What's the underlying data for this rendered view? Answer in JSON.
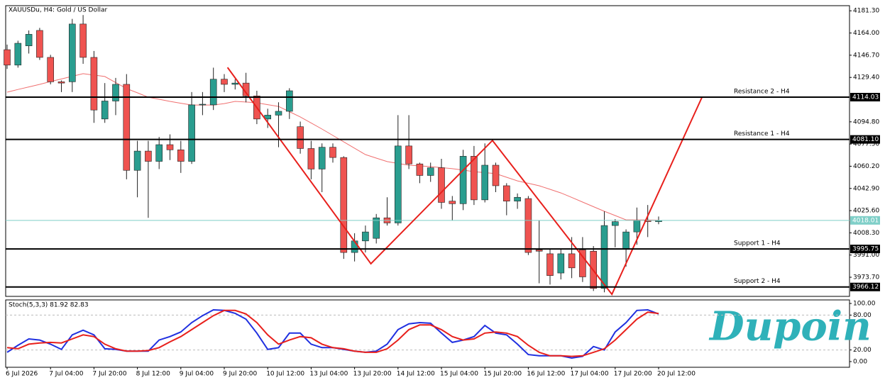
{
  "chart_data": {
    "type": "candlestick",
    "title": "XAUUSDu, H4:  Gold / US Dollar",
    "watermark": "Dupoin",
    "categories": [
      "6 Jul 2026",
      null,
      null,
      null,
      "7 Jul 04:00",
      null,
      null,
      null,
      "7 Jul 20:00",
      null,
      null,
      null,
      "8 Jul 12:00",
      null,
      null,
      null,
      "9 Jul 04:00",
      null,
      null,
      null,
      "9 Jul 20:00",
      null,
      null,
      null,
      "10 Jul 12:00",
      null,
      null,
      null,
      "13 Jul 04:00",
      null,
      null,
      null,
      "13 Jul 20:00",
      null,
      null,
      null,
      "14 Jul 12:00",
      null,
      null,
      null,
      "15 Jul 04:00",
      null,
      null,
      null,
      "15 Jul 20:00",
      null,
      null,
      null,
      "16 Jul 12:00",
      null,
      null,
      null,
      "17 Jul 04:00",
      null,
      null,
      null,
      "17 Jul 20:00",
      null,
      null,
      null,
      "20 Jul 12:00"
    ],
    "open": [
      4151,
      4139,
      4154,
      4166,
      4145,
      4126,
      4126,
      4171,
      4145,
      4097,
      4111,
      4124,
      4057,
      4072,
      4064,
      4077,
      4073,
      4064,
      4108,
      4108,
      4128,
      4124,
      4125,
      4115,
      4097,
      4100,
      4103,
      4091,
      4074,
      4058,
      4075,
      4067,
      3993,
      4002,
      4004,
      4020,
      4016,
      4076,
      4062,
      4053,
      4059,
      4033,
      4031,
      4068,
      4034,
      4061,
      4045,
      4033,
      4035,
      3995,
      3992,
      3977,
      3992,
      3995,
      3994,
      3965,
      4014,
      3996,
      4009,
      4018,
      4017
    ],
    "high": [
      4155,
      4158,
      4166,
      4168,
      4147,
      4127,
      4175,
      4178,
      4150,
      4125,
      4129,
      4132,
      4080,
      4080,
      4083,
      4085,
      4080,
      4118,
      4118,
      4137,
      4132,
      4128,
      4133,
      4119,
      4105,
      4110,
      4121,
      4095,
      4080,
      4078,
      4078,
      4068,
      4008,
      4014,
      4023,
      4036,
      4100,
      4100,
      4063,
      4063,
      4066,
      4037,
      4073,
      4076,
      4078,
      4063,
      4047,
      4039,
      4037,
      4018,
      3996,
      3996,
      4005,
      4005,
      3998,
      4025,
      4019,
      4011,
      4028,
      4030,
      4021
    ],
    "low": [
      4136,
      4137,
      4148,
      4143,
      4124,
      4118,
      4118,
      4140,
      4094,
      4094,
      4100,
      4050,
      4036,
      4020,
      4058,
      4065,
      4055,
      4062,
      4100,
      4104,
      4118,
      4120,
      4110,
      4093,
      4090,
      4075,
      4097,
      4070,
      4050,
      4040,
      4063,
      3988,
      3986,
      3993,
      4000,
      4014,
      4014,
      4058,
      4047,
      4048,
      4027,
      4018,
      4026,
      4030,
      4032,
      4040,
      4022,
      4027,
      3991,
      3969,
      3968,
      3972,
      3973,
      3970,
      3963,
      3962,
      3997,
      3982,
      3999,
      4005,
      4015
    ],
    "close": [
      4139,
      4156,
      4163,
      4145,
      4126,
      4125,
      4171,
      4145,
      4104,
      4111,
      4124,
      4057,
      4072,
      4064,
      4077,
      4073,
      4064,
      4108,
      4108.5,
      4128,
      4124,
      4125,
      4115,
      4097,
      4100,
      4103,
      4119,
      4074,
      4058,
      4075,
      4067,
      3993,
      4002,
      4009,
      4020,
      4016,
      4076,
      4062,
      4053,
      4059,
      4032,
      4031,
      4068,
      4034,
      4061,
      4045,
      4033,
      4036,
      3993,
      3994,
      3975,
      3992,
      3981,
      3974,
      3965,
      4014,
      4017,
      4009,
      4018,
      4017,
      4018.01
    ],
    "up_color": "#2a9d8f",
    "down_color": "#ef5350",
    "ma": {
      "color": "#f07070",
      "values": [
        4117.9,
        4120,
        4122,
        4124,
        4126.2,
        4128.2,
        4130.3,
        4132.3,
        4131.2,
        4130.1,
        4125.4,
        4120.7,
        4117.4,
        4114.0,
        4112.4,
        4110.7,
        4109.3,
        4107.9,
        4107.9,
        4107.9,
        4109,
        4110.7,
        4110.2,
        4109.6,
        4108.2,
        4106.8,
        4102.7,
        4098.6,
        4093.9,
        4089.2,
        4084.2,
        4079.2,
        4074.2,
        4069.3,
        4066.5,
        4063.8,
        4062.4,
        4061.0,
        4060.5,
        4059.9,
        4059.1,
        4058.3,
        4057.2,
        4056.0,
        4055.2,
        4054.4,
        4051.6,
        4048.8,
        4046.9,
        4045.0,
        4042.2,
        4039.4,
        4035.9,
        4032.3,
        4028.7,
        4025.1,
        4021.8,
        4018.4,
        4018.4,
        4018.3,
        4018.2
      ]
    },
    "ylim": [
      3958.8,
      4185.3
    ],
    "yticks": [
      {
        "value": 4181.3,
        "label": "4181.30"
      },
      {
        "value": 4164,
        "label": "4164.00"
      },
      {
        "value": 4146.7,
        "label": "4146.70"
      },
      {
        "value": 4129.4,
        "label": "4129.40"
      },
      {
        "value": 4094.8,
        "label": "4094.80"
      },
      {
        "value": 4077.5,
        "label": "4077.50"
      },
      {
        "value": 4060.2,
        "label": "4060.20"
      },
      {
        "value": 4042.9,
        "label": "4042.90"
      },
      {
        "value": 4025.6,
        "label": "4025.60"
      },
      {
        "value": 4008.3,
        "label": "4008.30"
      },
      {
        "value": 3991,
        "label": "3991.00"
      },
      {
        "value": 3973.7,
        "label": "3973.70"
      }
    ],
    "hlines": [
      {
        "name": "Resistance 2 - H4",
        "value": 4114.03
      },
      {
        "name": "Resistance 1 - H4",
        "value": 4081.1,
        "label": "4081.10"
      },
      {
        "name": "Support 1 - H4",
        "value": 3995.75
      },
      {
        "name": "Support 2 - H4",
        "value": 3966.12
      }
    ],
    "current_price": {
      "value": 4018.01,
      "color": "#7fcfc8"
    },
    "zigzag": {
      "color": "#e8201c",
      "x": [
        20.3,
        33.5,
        44.7,
        55.7,
        64
      ],
      "y": [
        4137.2,
        3984.2,
        4080.3,
        3960.4,
        4114.03
      ]
    },
    "indicator": {
      "title": "Stoch(5,3,3) 81.92 82.83",
      "ylim": [
        -9.8,
        106.1
      ],
      "yticks": [
        {
          "value": 100,
          "label": "100.00"
        },
        {
          "value": 80,
          "label": "80.00"
        },
        {
          "value": 20,
          "label": "20.00"
        },
        {
          "value": 0,
          "label": "0.00"
        }
      ],
      "levels": [
        80,
        20
      ],
      "series": [
        {
          "color": "#2030e0",
          "values": [
            16,
            28,
            39,
            37,
            30,
            21,
            46,
            54,
            46,
            22,
            21,
            18,
            18,
            18,
            37,
            43,
            51,
            67,
            79,
            89,
            88,
            83,
            73,
            49,
            21,
            24,
            49,
            49,
            30,
            24,
            24,
            21,
            18,
            16,
            18,
            30,
            55,
            65,
            67,
            66,
            49,
            33,
            37,
            43,
            62,
            49,
            46,
            30,
            12,
            10,
            10,
            10,
            6,
            9,
            26,
            20,
            51,
            67,
            88,
            89,
            81.92
          ]
        },
        {
          "color": "#e8201c",
          "values": [
            24,
            22,
            30,
            32,
            33,
            32,
            39,
            46,
            43,
            30,
            22,
            18,
            18,
            19,
            24,
            34,
            43,
            55,
            67,
            79,
            88,
            88,
            82,
            67,
            46,
            30,
            37,
            43,
            41,
            30,
            24,
            22,
            18,
            16,
            16,
            22,
            37,
            55,
            63,
            63,
            55,
            43,
            37,
            39,
            49,
            51,
            49,
            43,
            28,
            16,
            10,
            10,
            9,
            10,
            16,
            22,
            37,
            55,
            73,
            85,
            82.83
          ]
        }
      ]
    }
  }
}
